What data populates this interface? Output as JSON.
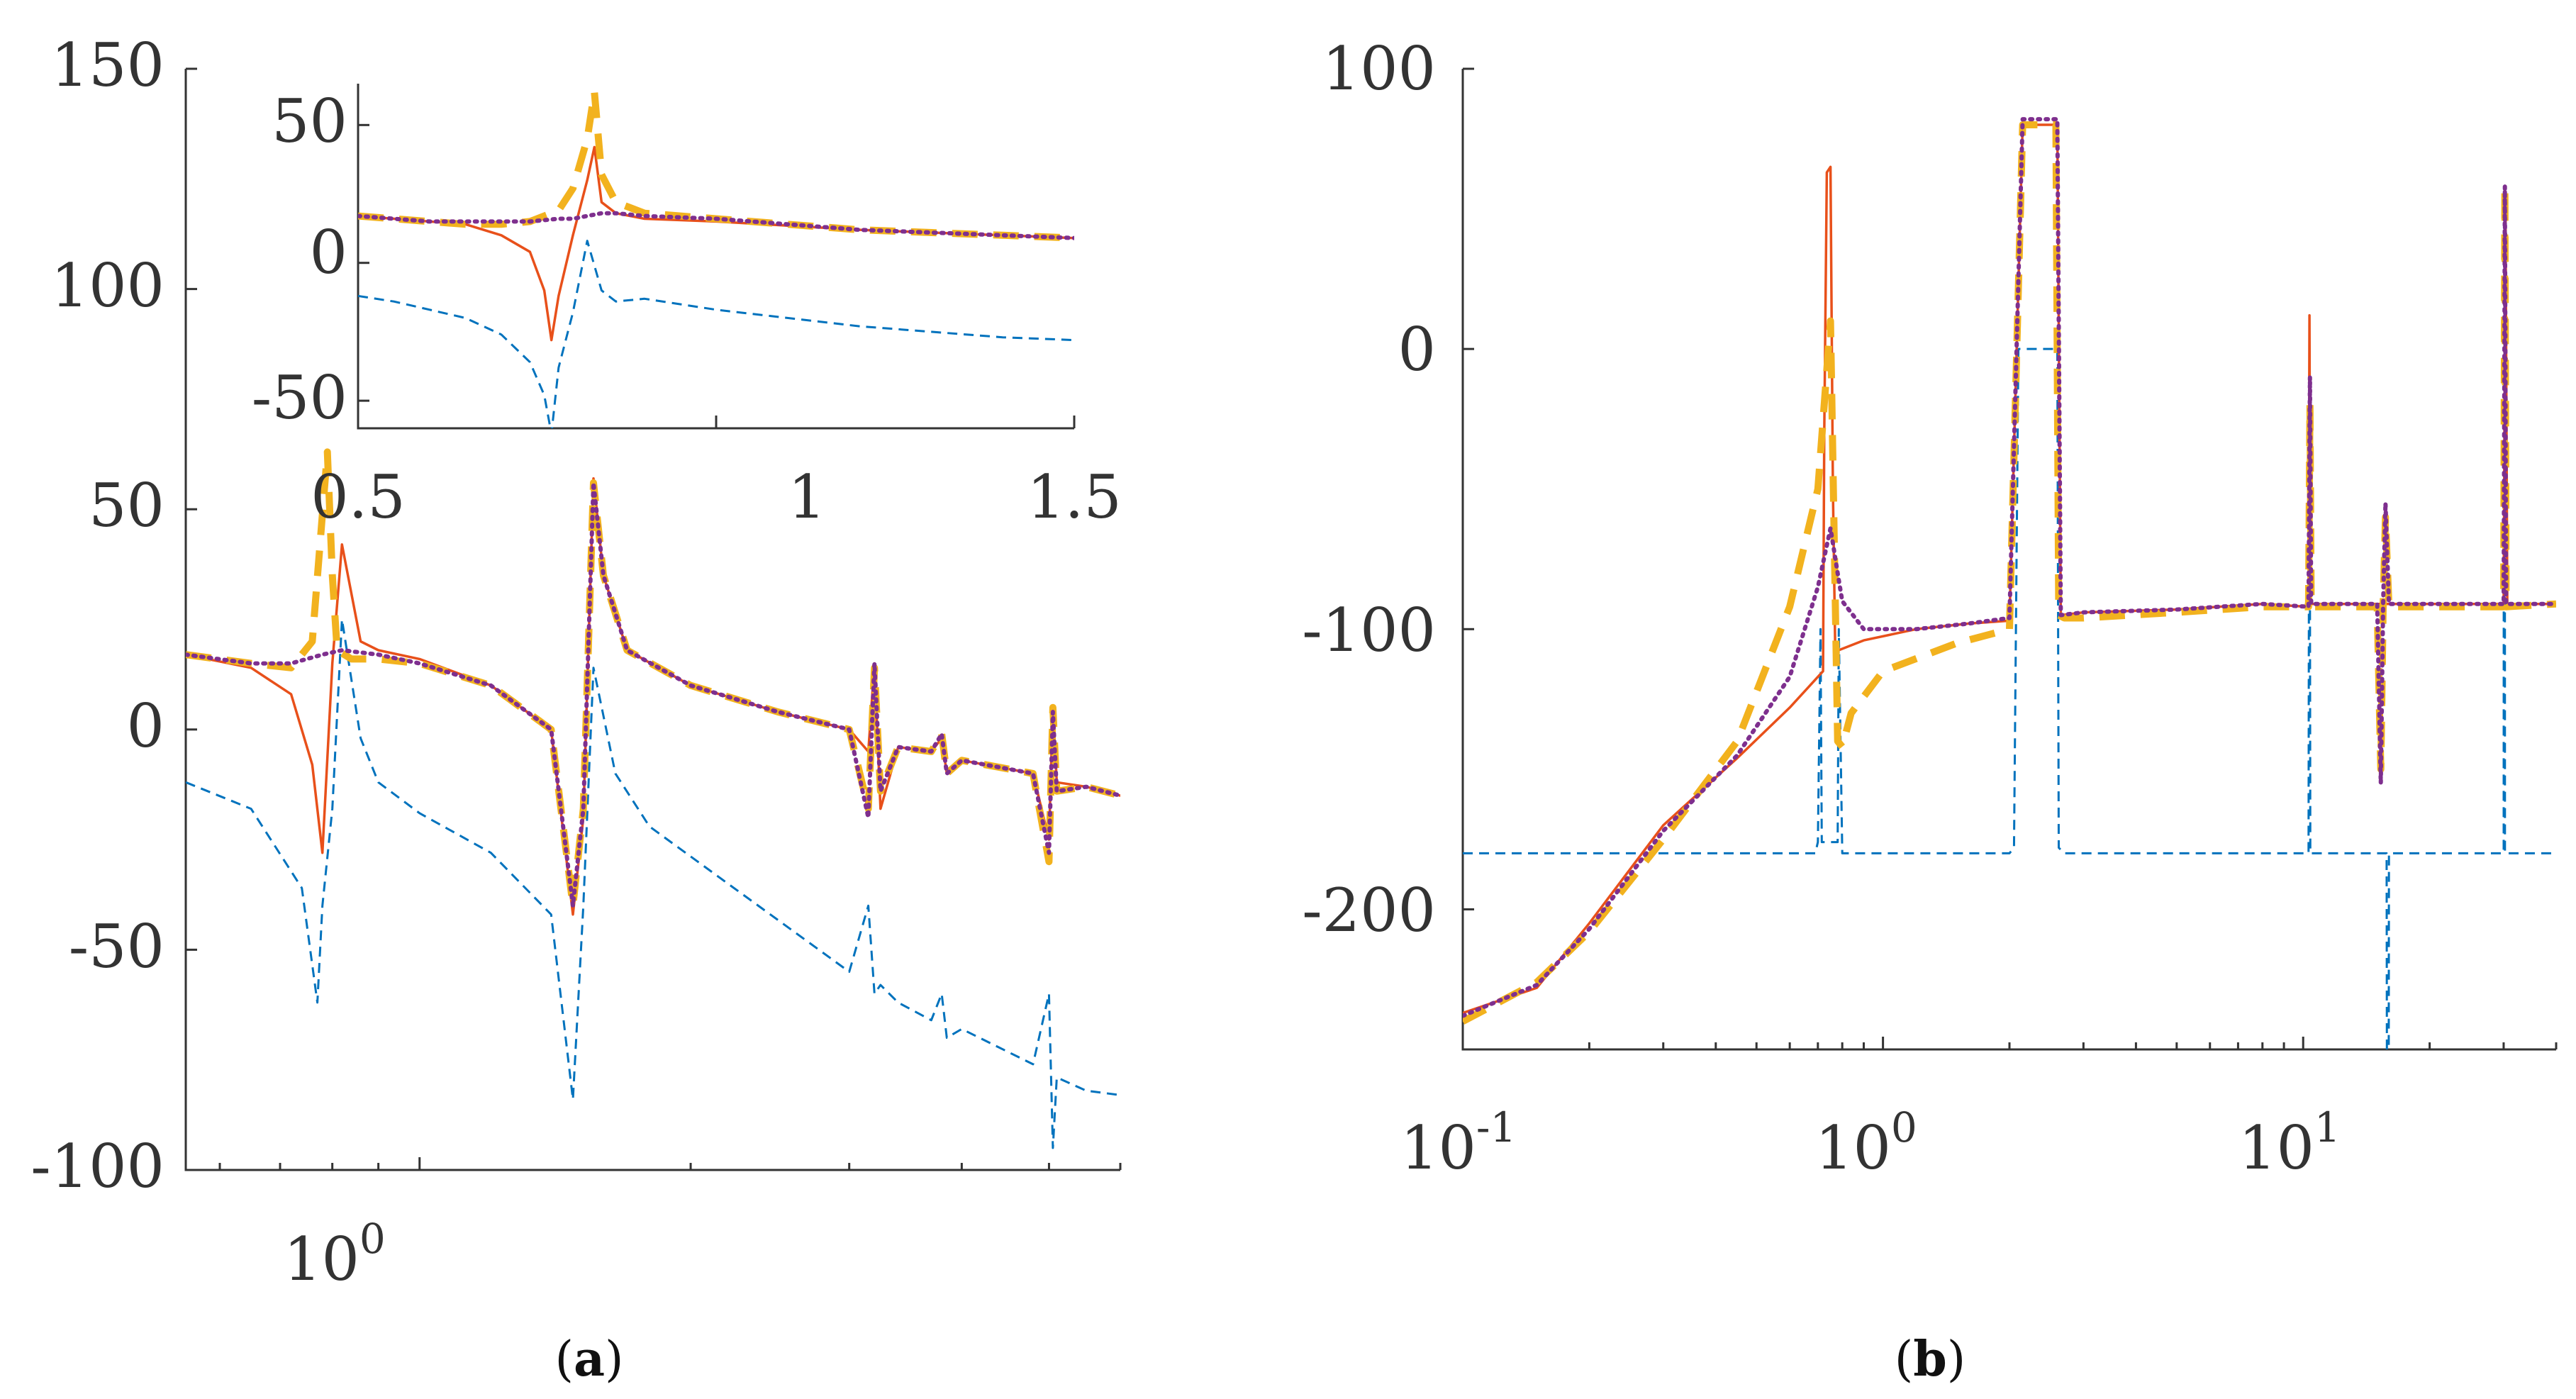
{
  "colors": {
    "series1": "#0072BD",
    "series2": "#E8501A",
    "series3": "#F2B21E",
    "series4": "#7E2F8E",
    "axis": "#333333"
  },
  "chart_data": [
    {
      "id": "a-main",
      "type": "line",
      "panel": "a",
      "title": "",
      "xlabel": "",
      "ylabel": "",
      "xscale": "log",
      "xlim": [
        0.55,
        6.0
      ],
      "ylim": [
        -100,
        150
      ],
      "yticks": [
        150,
        100,
        50,
        0,
        -50,
        -100
      ],
      "ytick_labels": [
        "150",
        "100",
        "50",
        "0",
        "-50",
        "-100"
      ],
      "xticks": [
        1
      ],
      "xtick_labels": [
        "10",
        "0"
      ],
      "grid": false,
      "legend": "none",
      "series": [
        {
          "name": "series1",
          "style": "dashed",
          "x": [
            0.55,
            0.65,
            0.74,
            0.77,
            0.78,
            0.8,
            0.82,
            0.86,
            0.9,
            1.0,
            1.2,
            1.4,
            1.48,
            1.52,
            1.56,
            1.65,
            1.8,
            2.2,
            3.0,
            3.15,
            3.2,
            3.25,
            3.4,
            3.7,
            3.8,
            3.85,
            4.0,
            4.8,
            5.0,
            5.05,
            5.1,
            5.5,
            6.0
          ],
          "y": [
            -12,
            -18,
            -36,
            -62,
            -40,
            -18,
            25,
            -2,
            -12,
            -19,
            -28,
            -42,
            -84,
            -40,
            14,
            -10,
            -22,
            -35,
            -55,
            -40,
            -60,
            -58,
            -62,
            -66,
            -60,
            -70,
            -68,
            -76,
            -60,
            -95,
            -79,
            -82,
            -83
          ]
        },
        {
          "name": "series2",
          "style": "solid",
          "x": [
            0.55,
            0.65,
            0.72,
            0.76,
            0.78,
            0.8,
            0.82,
            0.86,
            0.9,
            1.0,
            1.2,
            1.4,
            1.48,
            1.52,
            1.56,
            1.6,
            1.7,
            2.0,
            2.5,
            3.0,
            3.15,
            3.2,
            3.25,
            3.4,
            3.7,
            3.8,
            3.85,
            4.0,
            4.8,
            5.0,
            5.05,
            5.1,
            5.5,
            6.0
          ],
          "y": [
            17,
            14,
            8,
            -8,
            -28,
            15,
            42,
            20,
            18,
            16,
            10,
            0,
            -42,
            -20,
            57,
            35,
            18,
            10,
            4,
            0,
            -5,
            15,
            -18,
            -4,
            -5,
            -2,
            -10,
            -7,
            -10,
            -25,
            5,
            -12,
            -13,
            -15
          ]
        },
        {
          "name": "series3",
          "style": "dashed-thick",
          "x": [
            0.55,
            0.65,
            0.72,
            0.76,
            0.79,
            0.8,
            0.81,
            0.84,
            0.9,
            1.0,
            1.2,
            1.4,
            1.48,
            1.52,
            1.56,
            1.6,
            1.7,
            2.0,
            2.5,
            3.0,
            3.15,
            3.2,
            3.25,
            3.4,
            3.7,
            3.8,
            3.85,
            4.0,
            4.8,
            5.0,
            5.05,
            5.1,
            5.5,
            6.0
          ],
          "y": [
            17,
            15,
            14,
            20,
            63,
            35,
            18,
            16,
            16,
            15,
            10,
            0,
            -40,
            -18,
            56,
            35,
            18,
            10,
            4,
            0,
            -18,
            14,
            -14,
            -4,
            -5,
            -1,
            -10,
            -7,
            -10,
            -30,
            5,
            -14,
            -13,
            -15
          ]
        },
        {
          "name": "series4",
          "style": "dotted",
          "x": [
            0.55,
            0.65,
            0.72,
            0.78,
            0.82,
            0.9,
            1.0,
            1.2,
            1.4,
            1.48,
            1.52,
            1.56,
            1.6,
            1.7,
            2.0,
            2.5,
            3.0,
            3.15,
            3.2,
            3.25,
            3.4,
            3.7,
            3.8,
            3.85,
            4.0,
            4.8,
            5.0,
            5.05,
            5.1,
            5.5,
            6.0
          ],
          "y": [
            17,
            15,
            15,
            17,
            18,
            17,
            15,
            10,
            0,
            -40,
            -18,
            56,
            35,
            18,
            10,
            4,
            0,
            -20,
            15,
            -14,
            -4,
            -5,
            -1,
            -10,
            -7,
            -10,
            -28,
            4,
            -14,
            -13,
            -15
          ]
        }
      ]
    },
    {
      "id": "a-inset",
      "type": "line",
      "panel": "a",
      "title": "",
      "xlabel": "",
      "ylabel": "",
      "xscale": "linear",
      "xlim": [
        0.5,
        1.5
      ],
      "ylim": [
        -60,
        65
      ],
      "yticks": [
        50,
        0,
        -50
      ],
      "ytick_labels": [
        "50",
        "0",
        "-50"
      ],
      "xticks": [
        0.5,
        1,
        1.5
      ],
      "xtick_labels": [
        "0.5",
        "1",
        "1.5"
      ],
      "grid": false,
      "legend": "none",
      "series": [
        {
          "name": "series1",
          "style": "dashed",
          "x": [
            0.5,
            0.55,
            0.6,
            0.65,
            0.7,
            0.74,
            0.76,
            0.77,
            0.78,
            0.8,
            0.82,
            0.84,
            0.86,
            0.9,
            1.0,
            1.2,
            1.4,
            1.5
          ],
          "y": [
            -12,
            -14,
            -17,
            -20,
            -26,
            -36,
            -48,
            -62,
            -38,
            -18,
            8,
            -10,
            -14,
            -13,
            -17,
            -23,
            -27,
            -28
          ]
        },
        {
          "name": "series2",
          "style": "solid",
          "x": [
            0.5,
            0.55,
            0.6,
            0.65,
            0.7,
            0.74,
            0.76,
            0.77,
            0.78,
            0.8,
            0.82,
            0.83,
            0.84,
            0.86,
            0.9,
            1.0,
            1.2,
            1.4,
            1.5
          ],
          "y": [
            17,
            16,
            15,
            14,
            10,
            4,
            -10,
            -28,
            -12,
            10,
            30,
            42,
            22,
            18,
            16,
            15,
            12,
            10,
            9
          ]
        },
        {
          "name": "series3",
          "style": "dashed-thick",
          "x": [
            0.5,
            0.55,
            0.6,
            0.65,
            0.7,
            0.74,
            0.78,
            0.8,
            0.82,
            0.83,
            0.84,
            0.86,
            0.9,
            1.0,
            1.2,
            1.4,
            1.5
          ],
          "y": [
            17,
            16,
            15,
            14,
            14,
            15,
            19,
            27,
            45,
            62,
            32,
            22,
            18,
            16,
            12,
            10,
            9
          ]
        },
        {
          "name": "series4",
          "style": "dotted",
          "x": [
            0.5,
            0.55,
            0.6,
            0.65,
            0.7,
            0.74,
            0.78,
            0.8,
            0.82,
            0.84,
            0.86,
            0.9,
            1.0,
            1.2,
            1.4,
            1.5
          ],
          "y": [
            17,
            16,
            15,
            15,
            15,
            15,
            16,
            16,
            17,
            18,
            18,
            17,
            16,
            12,
            10,
            9
          ]
        }
      ]
    },
    {
      "id": "b-main",
      "type": "line",
      "panel": "b",
      "title": "",
      "xlabel": "",
      "ylabel": "",
      "xscale": "log",
      "xlim": [
        0.1,
        40
      ],
      "ylim": [
        -250,
        100
      ],
      "yticks": [
        100,
        0,
        -100,
        -200
      ],
      "ytick_labels": [
        "100",
        "0",
        "-100",
        "-200"
      ],
      "xticks": [
        0.1,
        1,
        10
      ],
      "xtick_labels": [
        [
          "10",
          "-1"
        ],
        [
          "10",
          "0"
        ],
        [
          "10",
          "1"
        ]
      ],
      "grid": false,
      "legend": "none",
      "series": [
        {
          "name": "series1",
          "style": "dashed",
          "x": [
            0.1,
            0.69,
            0.7,
            0.71,
            0.715,
            0.78,
            0.785,
            0.8,
            2.0,
            2.05,
            2.1,
            2.2,
            2.6,
            2.62,
            2.7,
            10.3,
            10.32,
            10.38,
            10.4,
            15.8,
            15.82,
            15.98,
            16,
            30,
            30.02,
            30.2,
            30.22,
            40
          ],
          "y": [
            -180,
            -180,
            -176,
            -100,
            -176,
            -176,
            -100,
            -180,
            -180,
            -178,
            0,
            0,
            0,
            -178,
            -180,
            -180,
            -90,
            -90,
            -180,
            -180,
            -250,
            -250,
            -180,
            -180,
            -90,
            -90,
            -180,
            -180
          ]
        },
        {
          "name": "series2",
          "style": "solid",
          "x": [
            0.1,
            0.15,
            0.2,
            0.3,
            0.45,
            0.6,
            0.72,
            0.725,
            0.735,
            0.75,
            0.76,
            0.77,
            0.9,
            1.2,
            1.6,
            2.0,
            2.15,
            2.2,
            2.5,
            2.6,
            2.65,
            3.0,
            5,
            8,
            10.3,
            10.35,
            10.4,
            10.45,
            15,
            20,
            30,
            30.3,
            30.6,
            40
          ],
          "y": [
            -237,
            -228,
            -205,
            -170,
            -146,
            -128,
            -115,
            -30,
            63,
            65,
            -50,
            -108,
            -104,
            -100,
            -98,
            -97,
            80,
            80,
            80,
            80,
            -95,
            -94,
            -93,
            -91,
            -92,
            12,
            -90,
            -91,
            -91,
            -91,
            -91,
            55,
            -91,
            -91
          ]
        },
        {
          "name": "series3",
          "style": "dashed-thick",
          "x": [
            0.1,
            0.15,
            0.2,
            0.3,
            0.45,
            0.6,
            0.7,
            0.75,
            0.78,
            0.8,
            0.84,
            1.0,
            1.5,
            2.0,
            2.15,
            2.2,
            2.5,
            2.58,
            2.62,
            2.7,
            3.0,
            5,
            8,
            10.3,
            10.38,
            10.45,
            15,
            15.3,
            15.5,
            15.7,
            16,
            20,
            30,
            30.2,
            30.4,
            40
          ],
          "y": [
            -240,
            -226,
            -208,
            -175,
            -140,
            -92,
            -50,
            10,
            -140,
            -142,
            -130,
            -115,
            -105,
            -100,
            80,
            80,
            80,
            80,
            -95,
            -96,
            -96,
            -94,
            -92,
            -92,
            -20,
            -92,
            -92,
            -150,
            -92,
            -60,
            -92,
            -92,
            -92,
            58,
            -92,
            -91
          ]
        },
        {
          "name": "series4",
          "style": "dotted",
          "x": [
            0.1,
            0.15,
            0.2,
            0.3,
            0.45,
            0.6,
            0.7,
            0.75,
            0.78,
            0.8,
            0.9,
            1.2,
            1.6,
            2.0,
            2.15,
            2.2,
            2.5,
            2.6,
            2.65,
            3.0,
            5,
            8,
            10.3,
            10.38,
            10.45,
            15,
            15.3,
            15.5,
            15.7,
            16,
            20,
            30,
            30.2,
            30.4,
            40
          ],
          "y": [
            -238,
            -227,
            -207,
            -172,
            -145,
            -117,
            -85,
            -64,
            -80,
            -90,
            -100,
            -100,
            -98,
            -96,
            82,
            82,
            82,
            82,
            -95,
            -94,
            -93,
            -91,
            -92,
            -10,
            -91,
            -91,
            -155,
            -91,
            -55,
            -91,
            -91,
            -91,
            58,
            -91,
            -91
          ]
        }
      ]
    }
  ],
  "captions": {
    "a": {
      "open": "(",
      "letter": "a",
      "close": ")"
    },
    "b": {
      "open": "(",
      "letter": "b",
      "close": ")"
    }
  }
}
